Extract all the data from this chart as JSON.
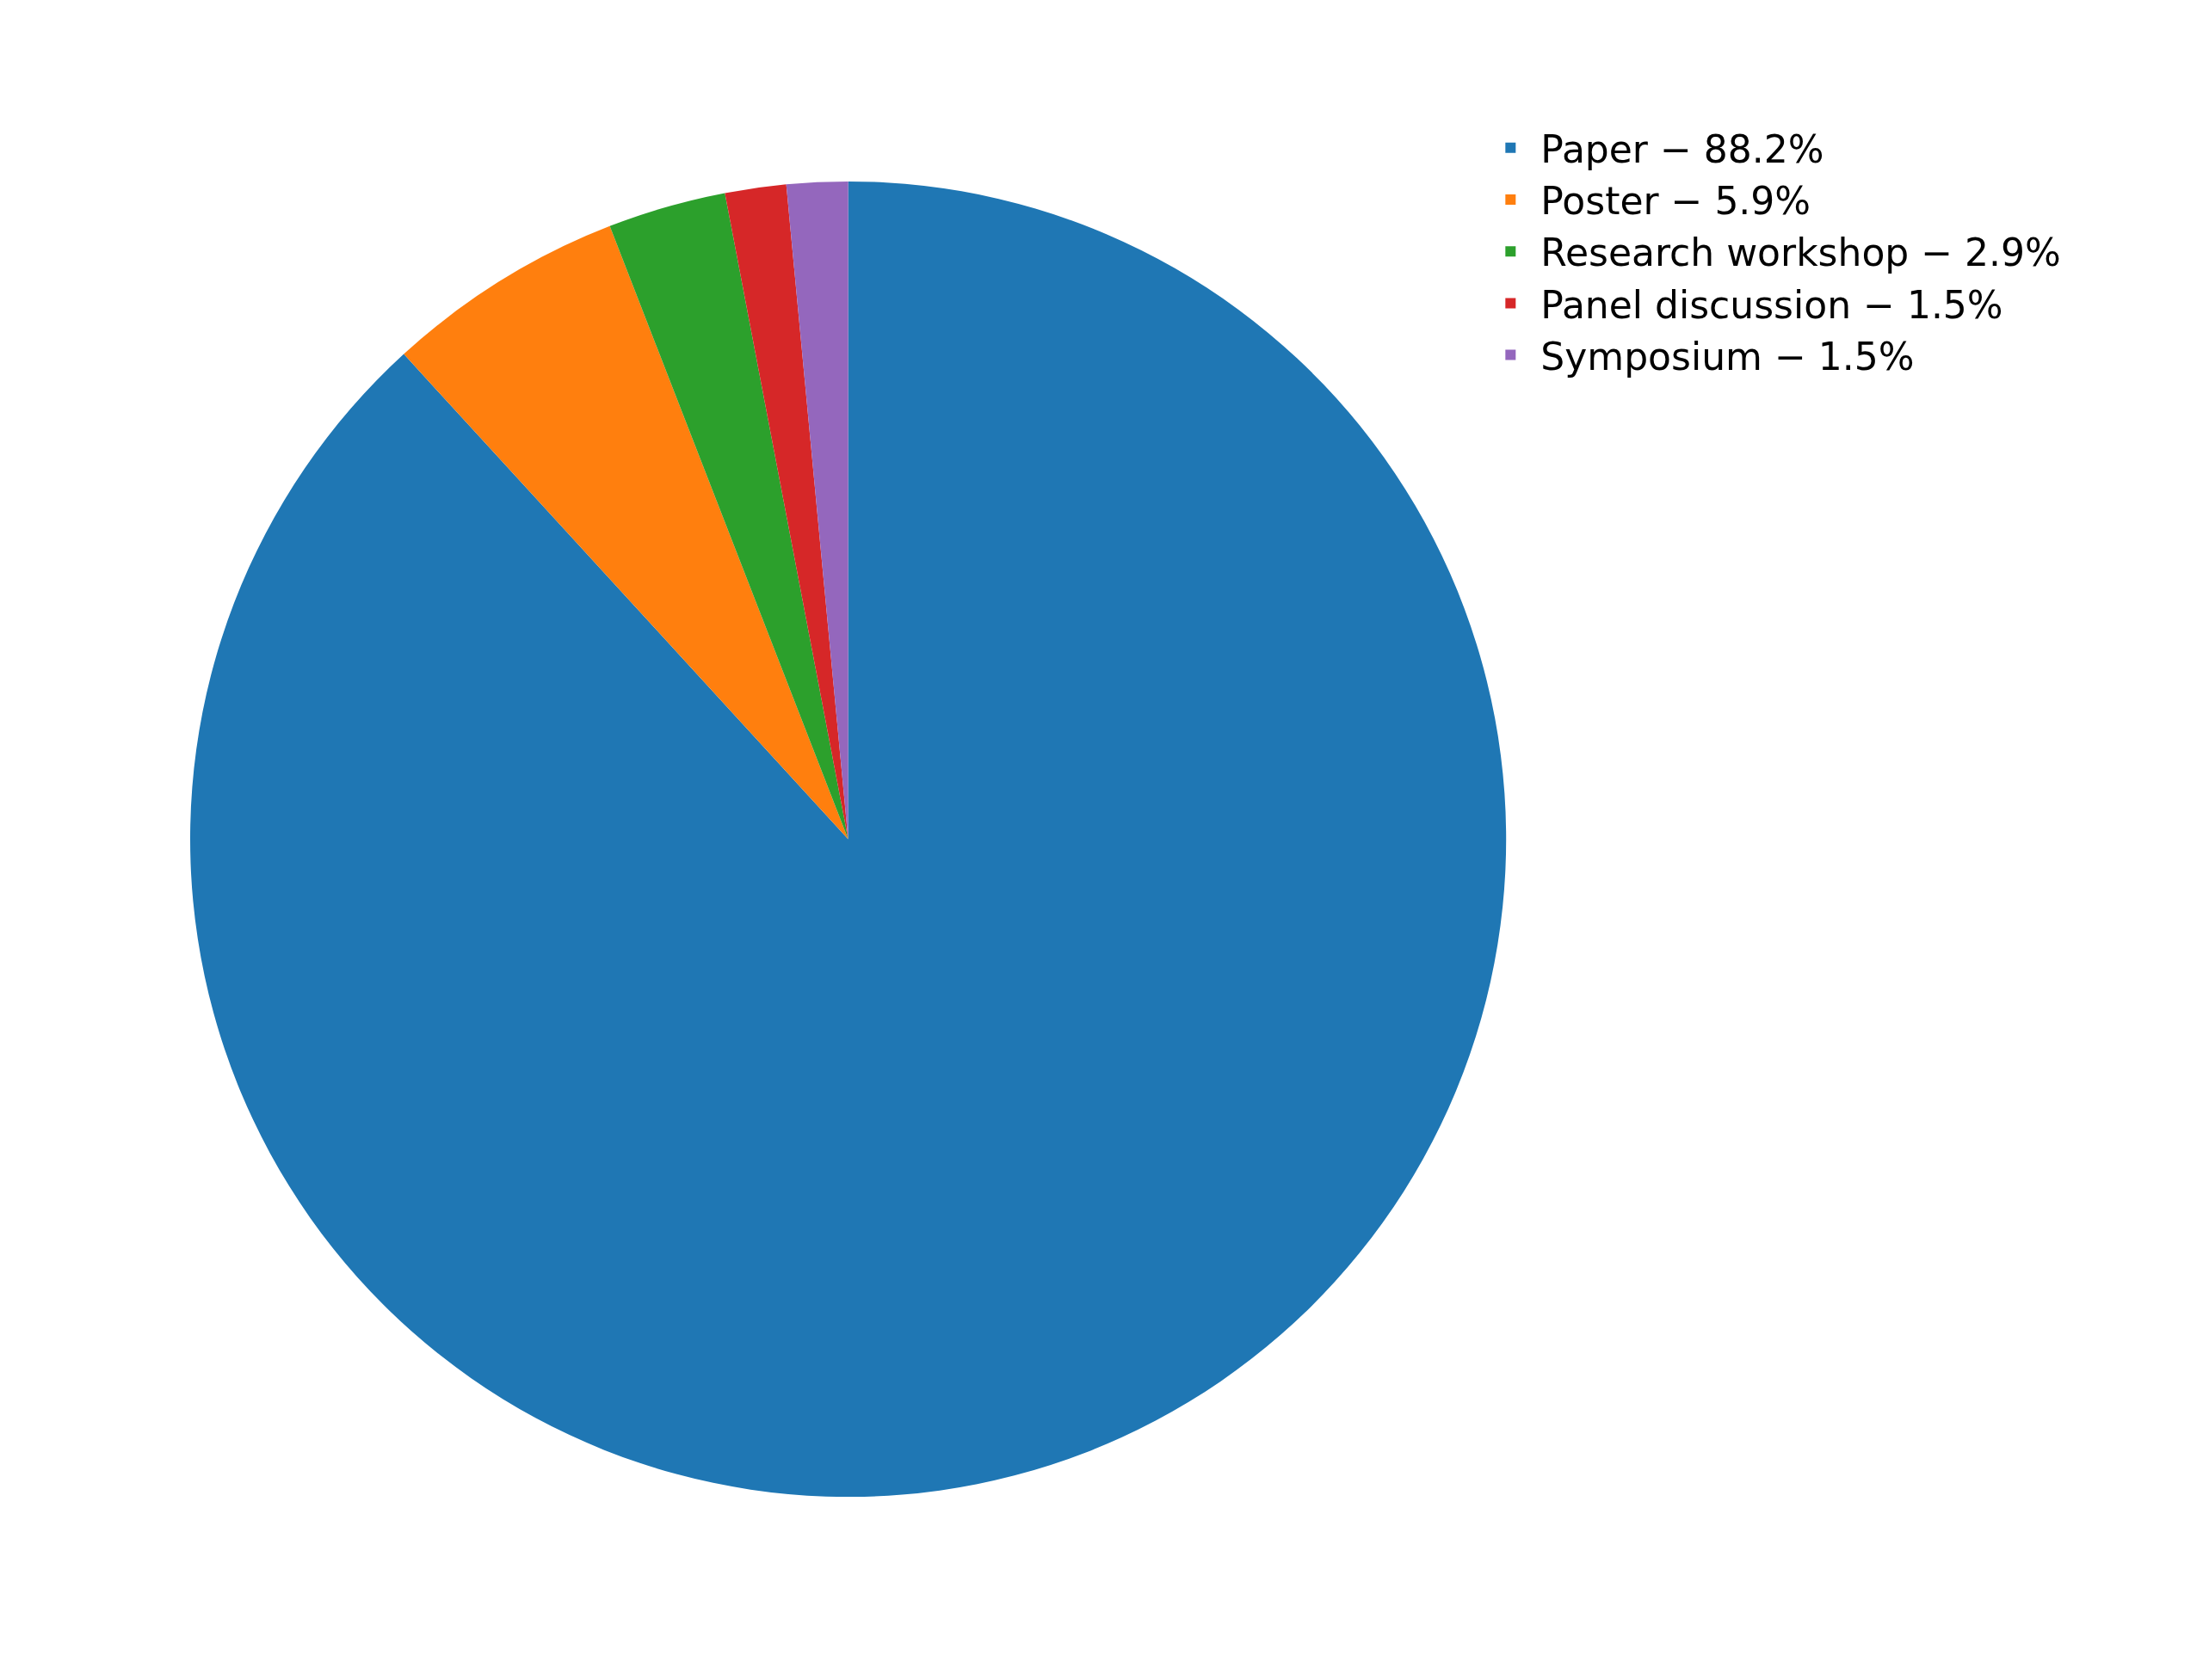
{
  "chart_data": {
    "type": "pie",
    "categories": [
      "Paper − 88.2%",
      "Poster − 5.9%",
      "Research workshop − 2.9%",
      "Panel discussion − 1.5%",
      "Symposium − 1.5%"
    ],
    "values": [
      88.2,
      5.9,
      2.9,
      1.5,
      1.5
    ],
    "colors": [
      "#1f77b4",
      "#ff7f0e",
      "#2ca02c",
      "#d62728",
      "#9467bd"
    ],
    "legend": "top right"
  }
}
